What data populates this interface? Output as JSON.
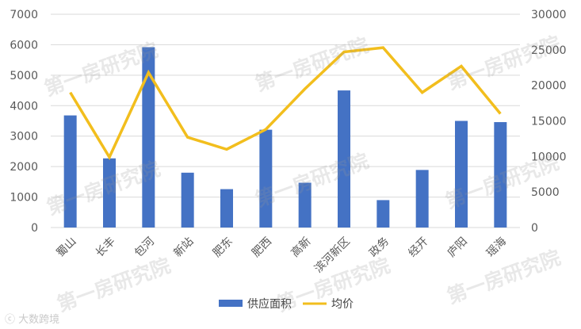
{
  "chart_data": {
    "type": "bar+line",
    "title": "",
    "categories": [
      "蜀山",
      "长丰",
      "包河",
      "新站",
      "肥东",
      "肥西",
      "高新",
      "滨河新区",
      "政务",
      "经开",
      "庐阳",
      "瑶海"
    ],
    "series": [
      {
        "name": "供应面积",
        "type": "bar",
        "axis": "left",
        "color": "#4472C4",
        "values": [
          3680,
          2270,
          5920,
          1800,
          1260,
          3210,
          1470,
          4500,
          900,
          1890,
          3500,
          3460
        ]
      },
      {
        "name": "均价",
        "type": "line",
        "axis": "right",
        "color": "#F2BE1D",
        "values": [
          19000,
          9900,
          21800,
          12700,
          11000,
          13800,
          19500,
          24700,
          25300,
          19000,
          22700,
          16000
        ]
      }
    ],
    "y_left": {
      "min": 0,
      "max": 7000,
      "ticks": [
        "0",
        "1000",
        "2000",
        "3000",
        "4000",
        "5000",
        "6000",
        "7000"
      ]
    },
    "y_right": {
      "min": 0,
      "max": 30000,
      "ticks": [
        "0",
        "5000",
        "10000",
        "15000",
        "20000",
        "25000",
        "30000"
      ]
    },
    "grid": true,
    "legend_position": "bottom"
  },
  "watermark_text": "第一房研究院",
  "corner_logo_text": "大数跨境"
}
